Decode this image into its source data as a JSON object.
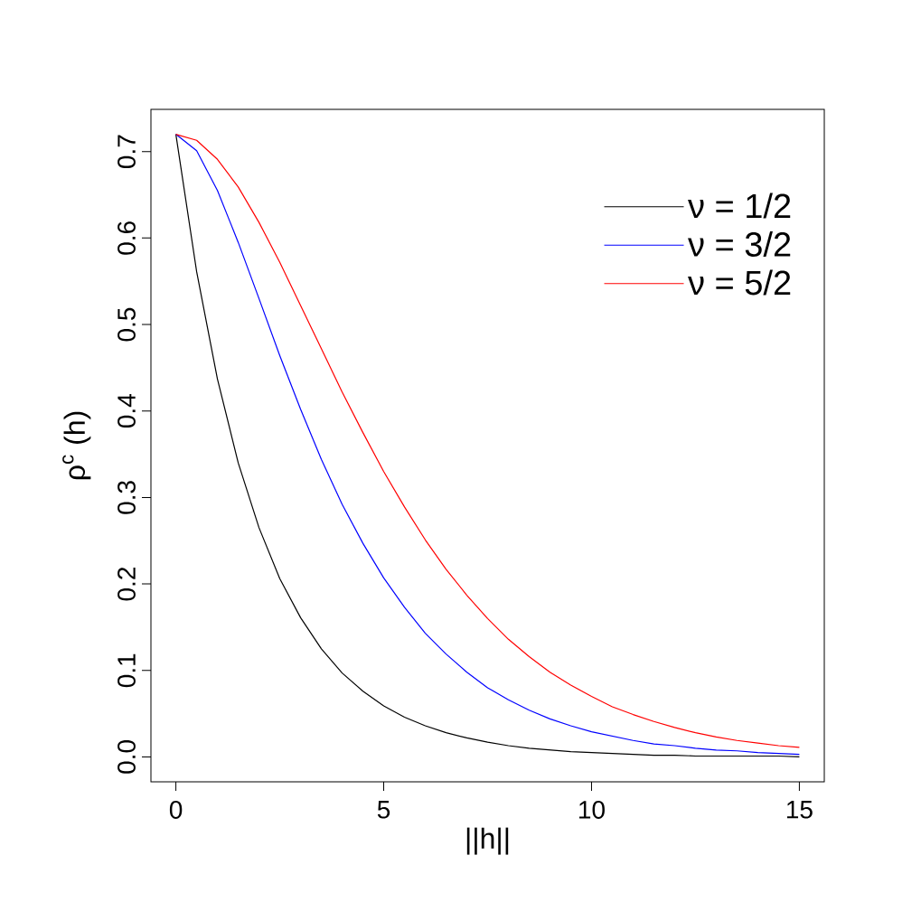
{
  "chart_data": {
    "type": "line",
    "xlabel": "||h||",
    "ylabel": "ρ$^{c}$ (h)",
    "x": [
      0,
      0.5,
      1,
      1.5,
      2,
      2.5,
      3,
      3.5,
      4,
      4.5,
      5,
      5.5,
      6,
      6.5,
      7,
      7.5,
      8,
      8.5,
      9,
      9.5,
      10,
      10.5,
      11,
      11.5,
      12,
      12.5,
      13,
      13.5,
      14,
      14.5,
      15
    ],
    "series": [
      {
        "name": "ν = 1/2",
        "color": "#000000",
        "values": [
          0.72,
          0.561,
          0.437,
          0.34,
          0.265,
          0.206,
          0.161,
          0.125,
          0.097,
          0.076,
          0.059,
          0.046,
          0.036,
          0.028,
          0.022,
          0.017,
          0.013,
          0.01,
          0.008,
          0.006,
          0.005,
          0.004,
          0.003,
          0.002,
          0.002,
          0.001,
          0.001,
          0.001,
          0.001,
          0.001,
          0.0
        ]
      },
      {
        "name": "ν = 3/2",
        "color": "#0000ff",
        "values": [
          0.72,
          0.701,
          0.655,
          0.595,
          0.53,
          0.464,
          0.402,
          0.344,
          0.292,
          0.247,
          0.207,
          0.173,
          0.143,
          0.119,
          0.098,
          0.08,
          0.066,
          0.054,
          0.044,
          0.036,
          0.029,
          0.024,
          0.019,
          0.015,
          0.013,
          0.01,
          0.008,
          0.007,
          0.005,
          0.004,
          0.003
        ]
      },
      {
        "name": "ν = 5/2",
        "color": "#ff0000",
        "values": [
          0.72,
          0.713,
          0.691,
          0.659,
          0.618,
          0.572,
          0.522,
          0.472,
          0.422,
          0.375,
          0.33,
          0.289,
          0.251,
          0.217,
          0.187,
          0.16,
          0.136,
          0.116,
          0.098,
          0.083,
          0.07,
          0.058,
          0.049,
          0.041,
          0.034,
          0.028,
          0.023,
          0.019,
          0.016,
          0.013,
          0.011
        ]
      }
    ],
    "xlim": [
      -0.6,
      15.6
    ],
    "ylim": [
      -0.0288,
      0.7488
    ],
    "xticks": [
      0,
      5,
      10,
      15
    ],
    "yticks": [
      {
        "value": 0,
        "label": "0.0"
      },
      0.1,
      0.2,
      0.3,
      0.4,
      0.5,
      0.6,
      0.7
    ],
    "legend": "top right"
  }
}
